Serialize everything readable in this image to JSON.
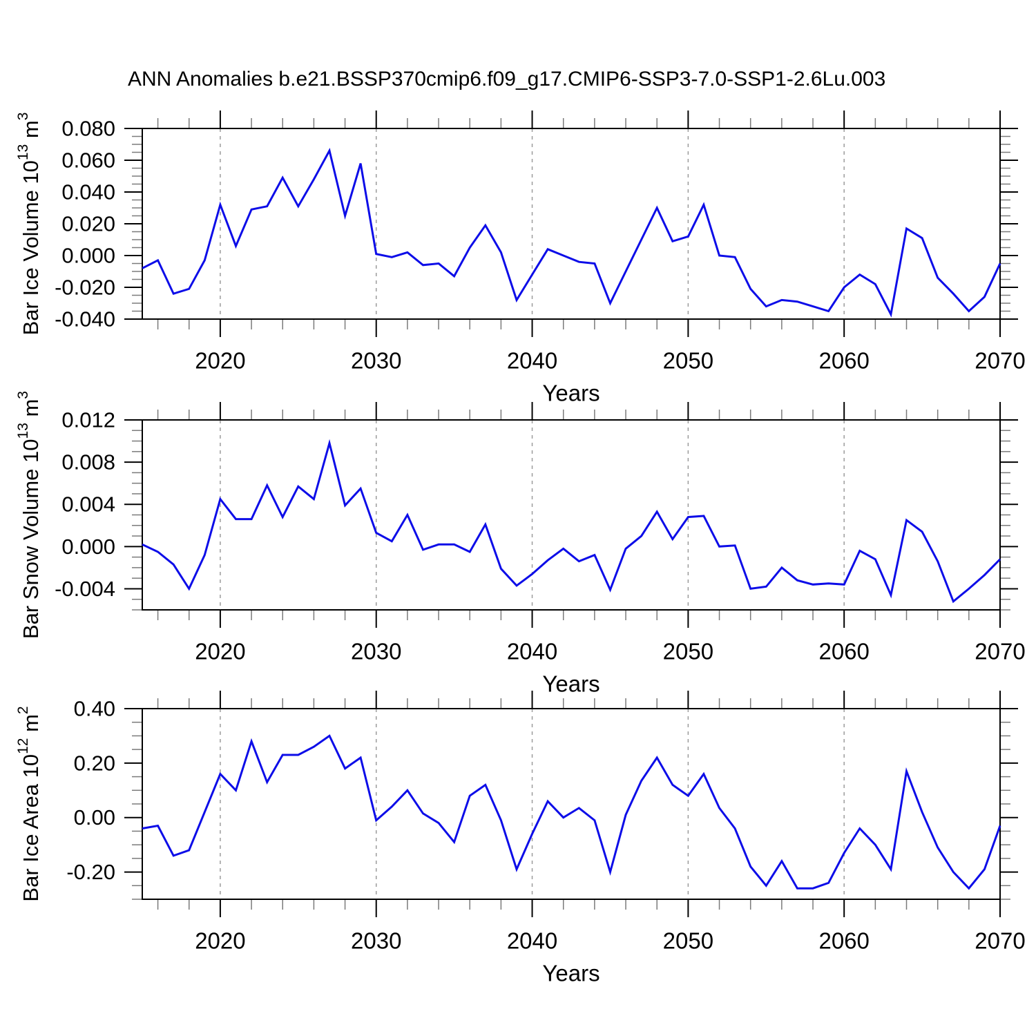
{
  "title": "ANN Anomalies b.e21.BSSP370cmip6.f09_g17.CMIP6-SSP3-7.0-SSP1-2.6Lu.003",
  "colors": {
    "line": "#0d0de8",
    "grid": "#9b9b9b",
    "axis": "#000000",
    "minor_tick": "#7a7a7a",
    "background": "#ffffff",
    "text": "#000000"
  },
  "x_axis": {
    "label": "Years",
    "min": 2015,
    "max": 2070,
    "major_ticks": [
      2020,
      2030,
      2040,
      2050,
      2060,
      2070
    ],
    "major_tick_labels": [
      "2020",
      "2030",
      "2040",
      "2050",
      "2060",
      "2070"
    ],
    "minor_step": 2,
    "gridline_years": [
      2020,
      2030,
      2040,
      2050,
      2060
    ]
  },
  "years": [
    2015,
    2016,
    2017,
    2018,
    2019,
    2020,
    2021,
    2022,
    2023,
    2024,
    2025,
    2026,
    2027,
    2028,
    2029,
    2030,
    2031,
    2032,
    2033,
    2034,
    2035,
    2036,
    2037,
    2038,
    2039,
    2040,
    2041,
    2042,
    2043,
    2044,
    2045,
    2046,
    2047,
    2048,
    2049,
    2050,
    2051,
    2052,
    2053,
    2054,
    2055,
    2056,
    2057,
    2058,
    2059,
    2060,
    2061,
    2062,
    2063,
    2064,
    2065,
    2066,
    2067,
    2068,
    2069,
    2070
  ],
  "chart_data": [
    {
      "id": "ice-volume",
      "type": "line",
      "ylabel": "Bar Ice Volume 10^13 m^3",
      "ylabel_parts": [
        {
          "t": "Bar Ice Volume 10"
        },
        {
          "t": "13",
          "sup": true
        },
        {
          "t": " m"
        },
        {
          "t": "3",
          "sup": true
        }
      ],
      "xlabel": "Years",
      "ylim": [
        -0.04,
        0.08
      ],
      "ytick_values": [
        0.08,
        0.06,
        0.04,
        0.02,
        0.0,
        -0.02,
        -0.04
      ],
      "ytick_labels": [
        "0.080",
        "0.060",
        "0.040",
        "0.020",
        "0.000",
        "-0.020",
        "-0.040"
      ],
      "yminor_step": 0.005,
      "grid": "vertical-dashed",
      "values": [
        -0.008,
        -0.003,
        -0.024,
        -0.021,
        -0.003,
        0.032,
        0.006,
        0.029,
        0.031,
        0.049,
        0.031,
        0.048,
        0.066,
        0.025,
        0.058,
        0.001,
        -0.001,
        0.002,
        -0.006,
        -0.005,
        -0.013,
        0.005,
        0.019,
        0.002,
        -0.028,
        -0.012,
        0.004,
        0.0,
        -0.004,
        -0.005,
        -0.03,
        -0.01,
        0.01,
        0.03,
        0.009,
        0.012,
        0.032,
        0.0,
        -0.001,
        -0.021,
        -0.032,
        -0.028,
        -0.029,
        -0.032,
        -0.035,
        -0.02,
        -0.012,
        -0.018,
        -0.037,
        0.017,
        0.011,
        -0.014,
        -0.024,
        -0.035,
        -0.026,
        -0.005
      ]
    },
    {
      "id": "snow-volume",
      "type": "line",
      "ylabel": "Bar Snow Volume 10^13 m^3",
      "ylabel_parts": [
        {
          "t": "Bar Snow Volume 10"
        },
        {
          "t": "13",
          "sup": true
        },
        {
          "t": " m"
        },
        {
          "t": "3",
          "sup": true
        }
      ],
      "xlabel": "Years",
      "ylim": [
        -0.006,
        0.012
      ],
      "ytick_values": [
        0.012,
        0.008,
        0.004,
        0.0,
        -0.004
      ],
      "ytick_labels": [
        "0.012",
        "0.008",
        "0.004",
        "0.000",
        "-0.004"
      ],
      "yminor_step": 0.001,
      "grid": "vertical-dashed",
      "values": [
        0.0002,
        -0.0005,
        -0.0017,
        -0.004,
        -0.0008,
        0.0045,
        0.0026,
        0.0026,
        0.0058,
        0.0028,
        0.0057,
        0.0045,
        0.0098,
        0.0039,
        0.0055,
        0.0013,
        0.0005,
        0.003,
        -0.0003,
        0.0002,
        0.0002,
        -0.0005,
        0.0021,
        -0.0021,
        -0.0037,
        -0.0026,
        -0.0013,
        -0.0002,
        -0.0014,
        -0.0008,
        -0.0041,
        -0.0002,
        0.001,
        0.0033,
        0.0007,
        0.0028,
        0.0029,
        0.0,
        0.0001,
        -0.004,
        -0.0038,
        -0.002,
        -0.0032,
        -0.0036,
        -0.0035,
        -0.0036,
        -0.0004,
        -0.0012,
        -0.0046,
        0.0025,
        0.0014,
        -0.0014,
        -0.0052,
        -0.004,
        -0.0027,
        -0.0012
      ]
    },
    {
      "id": "ice-area",
      "type": "line",
      "ylabel": "Bar Ice Area 10^12 m^2",
      "ylabel_parts": [
        {
          "t": "Bar Ice Area 10"
        },
        {
          "t": "12",
          "sup": true
        },
        {
          "t": " m"
        },
        {
          "t": "2",
          "sup": true
        }
      ],
      "xlabel": "Years",
      "ylim": [
        -0.3,
        0.4
      ],
      "ytick_values": [
        0.4,
        0.2,
        0.0,
        -0.2
      ],
      "ytick_labels": [
        "0.40",
        "0.20",
        "0.00",
        "-0.20"
      ],
      "yminor_step": 0.05,
      "grid": "vertical-dashed",
      "values": [
        -0.04,
        -0.03,
        -0.14,
        -0.12,
        0.02,
        0.16,
        0.1,
        0.28,
        0.13,
        0.23,
        0.23,
        0.26,
        0.3,
        0.18,
        0.22,
        -0.01,
        0.04,
        0.1,
        0.015,
        -0.02,
        -0.09,
        0.08,
        0.12,
        -0.01,
        -0.19,
        -0.06,
        0.06,
        0.0,
        0.035,
        -0.01,
        -0.2,
        0.01,
        0.135,
        0.22,
        0.12,
        0.08,
        0.16,
        0.035,
        -0.04,
        -0.18,
        -0.25,
        -0.16,
        -0.26,
        -0.26,
        -0.24,
        -0.13,
        -0.04,
        -0.1,
        -0.19,
        0.17,
        0.02,
        -0.11,
        -0.2,
        -0.26,
        -0.19,
        -0.03
      ]
    }
  ]
}
